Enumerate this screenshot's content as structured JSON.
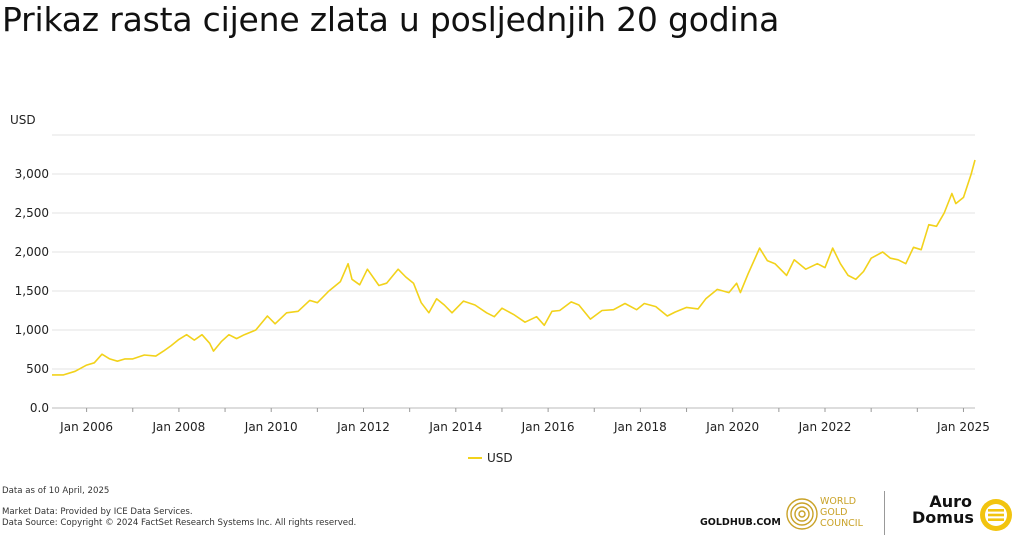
{
  "chart_data": {
    "type": "line",
    "title": "Prikaz rasta cijene zlata u posljednjih 20 godina",
    "ylabel": "USD",
    "ylim": [
      0,
      3500
    ],
    "yticks": [
      0,
      500,
      1000,
      1500,
      2000,
      2500,
      3000
    ],
    "ytick_labels": [
      "0.0",
      "500",
      "1,000",
      "1,500",
      "2,000",
      "2,500",
      "3,000"
    ],
    "xlim": [
      "2005-04",
      "2025-04"
    ],
    "xticks": [
      "2006-01",
      "2008-01",
      "2010-01",
      "2012-01",
      "2014-01",
      "2016-01",
      "2018-01",
      "2020-01",
      "2022-01",
      "2025-01"
    ],
    "xtick_labels": [
      "Jan 2006",
      "Jan 2008",
      "Jan 2010",
      "Jan 2012",
      "Jan 2014",
      "Jan 2016",
      "Jan 2018",
      "Jan 2020",
      "Jan 2022",
      "Jan 2025"
    ],
    "grid": true,
    "legend": "bottom-center",
    "series": [
      {
        "name": "USD",
        "color": "#f2d21b",
        "points": [
          [
            "2005-04",
            425
          ],
          [
            "2005-07",
            425
          ],
          [
            "2005-10",
            470
          ],
          [
            "2006-01",
            550
          ],
          [
            "2006-03",
            580
          ],
          [
            "2006-05",
            690
          ],
          [
            "2006-07",
            630
          ],
          [
            "2006-09",
            600
          ],
          [
            "2006-11",
            630
          ],
          [
            "2007-01",
            630
          ],
          [
            "2007-04",
            680
          ],
          [
            "2007-07",
            665
          ],
          [
            "2007-09",
            730
          ],
          [
            "2007-11",
            800
          ],
          [
            "2008-01",
            880
          ],
          [
            "2008-03",
            940
          ],
          [
            "2008-05",
            870
          ],
          [
            "2008-07",
            940
          ],
          [
            "2008-09",
            830
          ],
          [
            "2008-10",
            730
          ],
          [
            "2008-12",
            850
          ],
          [
            "2009-02",
            940
          ],
          [
            "2009-04",
            890
          ],
          [
            "2009-06",
            940
          ],
          [
            "2009-09",
            1000
          ],
          [
            "2009-12",
            1180
          ],
          [
            "2010-02",
            1080
          ],
          [
            "2010-05",
            1220
          ],
          [
            "2010-08",
            1240
          ],
          [
            "2010-11",
            1380
          ],
          [
            "2011-01",
            1350
          ],
          [
            "2011-04",
            1500
          ],
          [
            "2011-07",
            1620
          ],
          [
            "2011-09",
            1850
          ],
          [
            "2011-10",
            1650
          ],
          [
            "2011-12",
            1580
          ],
          [
            "2012-02",
            1780
          ],
          [
            "2012-05",
            1570
          ],
          [
            "2012-07",
            1600
          ],
          [
            "2012-10",
            1780
          ],
          [
            "2012-12",
            1680
          ],
          [
            "2013-02",
            1600
          ],
          [
            "2013-04",
            1350
          ],
          [
            "2013-06",
            1220
          ],
          [
            "2013-08",
            1400
          ],
          [
            "2013-10",
            1320
          ],
          [
            "2013-12",
            1220
          ],
          [
            "2014-03",
            1370
          ],
          [
            "2014-06",
            1320
          ],
          [
            "2014-09",
            1220
          ],
          [
            "2014-11",
            1170
          ],
          [
            "2015-01",
            1280
          ],
          [
            "2015-04",
            1200
          ],
          [
            "2015-07",
            1100
          ],
          [
            "2015-10",
            1170
          ],
          [
            "2015-12",
            1060
          ],
          [
            "2016-02",
            1240
          ],
          [
            "2016-04",
            1250
          ],
          [
            "2016-07",
            1360
          ],
          [
            "2016-09",
            1320
          ],
          [
            "2016-12",
            1140
          ],
          [
            "2017-03",
            1250
          ],
          [
            "2017-06",
            1260
          ],
          [
            "2017-09",
            1340
          ],
          [
            "2017-12",
            1260
          ],
          [
            "2018-02",
            1340
          ],
          [
            "2018-05",
            1300
          ],
          [
            "2018-08",
            1180
          ],
          [
            "2018-10",
            1230
          ],
          [
            "2019-01",
            1290
          ],
          [
            "2019-04",
            1270
          ],
          [
            "2019-06",
            1400
          ],
          [
            "2019-09",
            1520
          ],
          [
            "2019-12",
            1480
          ],
          [
            "2020-02",
            1600
          ],
          [
            "2020-03",
            1480
          ],
          [
            "2020-05",
            1720
          ],
          [
            "2020-08",
            2050
          ],
          [
            "2020-10",
            1890
          ],
          [
            "2020-12",
            1850
          ],
          [
            "2021-03",
            1700
          ],
          [
            "2021-05",
            1900
          ],
          [
            "2021-08",
            1780
          ],
          [
            "2021-11",
            1850
          ],
          [
            "2022-01",
            1800
          ],
          [
            "2022-03",
            2050
          ],
          [
            "2022-05",
            1850
          ],
          [
            "2022-07",
            1700
          ],
          [
            "2022-09",
            1650
          ],
          [
            "2022-11",
            1750
          ],
          [
            "2023-01",
            1920
          ],
          [
            "2023-04",
            2000
          ],
          [
            "2023-06",
            1920
          ],
          [
            "2023-08",
            1900
          ],
          [
            "2023-10",
            1850
          ],
          [
            "2023-12",
            2060
          ],
          [
            "2024-02",
            2030
          ],
          [
            "2024-04",
            2350
          ],
          [
            "2024-06",
            2330
          ],
          [
            "2024-08",
            2500
          ],
          [
            "2024-10",
            2750
          ],
          [
            "2024-11",
            2620
          ],
          [
            "2025-01",
            2700
          ],
          [
            "2025-03",
            3000
          ],
          [
            "2025-04",
            3180
          ]
        ]
      }
    ]
  },
  "footer": {
    "date_note": "Data as of 10 April, 2025",
    "market_data": "Market Data: Provided by ICE Data Services.",
    "data_source": "Data Source: Copyright © 2024 FactSet Research Systems Inc. All rights reserved.",
    "goldhub": "GOLDHUB.COM",
    "wgc_line1": "WORLD",
    "wgc_line2": "GOLD",
    "wgc_line3": "COUNCIL",
    "auro_line1": "Auro",
    "auro_line2": "Domus"
  },
  "colors": {
    "series": "#f2d21b",
    "gold_logo": "#c9a227",
    "grid": "#e3e3e3",
    "axis": "#bbbbbb"
  }
}
